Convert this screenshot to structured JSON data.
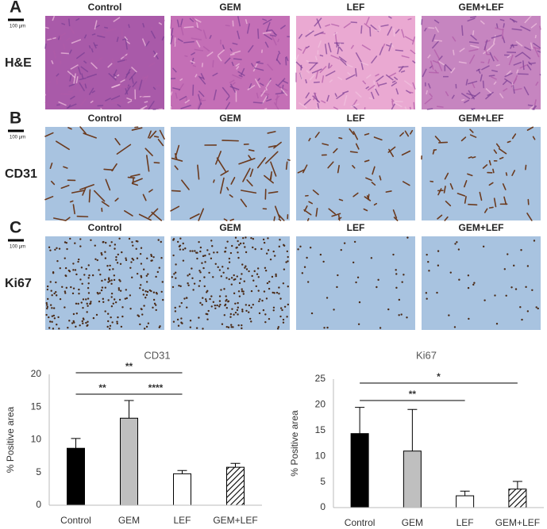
{
  "panels": [
    {
      "letter": "A",
      "stain": "H&E",
      "scale": "100 µm",
      "columns": [
        "Control",
        "GEM",
        "LEF",
        "GEM+LEF"
      ]
    },
    {
      "letter": "B",
      "stain": "CD31",
      "scale": "100 µm",
      "columns": [
        "Control",
        "GEM",
        "LEF",
        "GEM+LEF"
      ]
    },
    {
      "letter": "C",
      "stain": "Ki67",
      "scale": "100 µm",
      "columns": [
        "Control",
        "GEM",
        "LEF",
        "GEM+LEF"
      ]
    }
  ],
  "chart_data": [
    {
      "type": "bar",
      "title": "CD31",
      "y_label": "% Positive area",
      "categories": [
        "Control",
        "GEM",
        "LEF",
        "GEM+LEF"
      ],
      "values": [
        8.7,
        13.3,
        4.8,
        5.8
      ],
      "errors": [
        1.5,
        2.7,
        0.5,
        0.6
      ],
      "colors": [
        "#000000",
        "#bfbfbf",
        "#ffffff",
        "#ffffff"
      ],
      "patterns": [
        "solid",
        "solid",
        "solid",
        "hatched"
      ],
      "ylim": [
        0,
        20
      ],
      "yticks": [
        0,
        5,
        10,
        15,
        20
      ],
      "grid": false,
      "significance": [
        {
          "label": "**",
          "groups": [
            "Control",
            "LEF"
          ]
        },
        {
          "label": "**",
          "groups": [
            "Control",
            "GEM"
          ]
        },
        {
          "label": "****",
          "groups": [
            "GEM",
            "LEF"
          ]
        }
      ]
    },
    {
      "type": "bar",
      "title": "Ki67",
      "y_label": "% Positive area",
      "categories": [
        "Control",
        "GEM",
        "LEF",
        "GEM+LEF"
      ],
      "values": [
        14.4,
        11.0,
        2.3,
        3.6
      ],
      "errors": [
        5.1,
        8.1,
        0.9,
        1.5
      ],
      "colors": [
        "#000000",
        "#bfbfbf",
        "#ffffff",
        "#ffffff"
      ],
      "patterns": [
        "solid",
        "solid",
        "solid",
        "hatched"
      ],
      "ylim": [
        0,
        25
      ],
      "yticks": [
        0,
        5,
        10,
        15,
        20,
        25
      ],
      "grid": false,
      "significance": [
        {
          "label": "*",
          "groups": [
            "Control",
            "GEM+LEF"
          ]
        },
        {
          "label": "**",
          "groups": [
            "Control",
            "LEF"
          ]
        }
      ]
    }
  ]
}
